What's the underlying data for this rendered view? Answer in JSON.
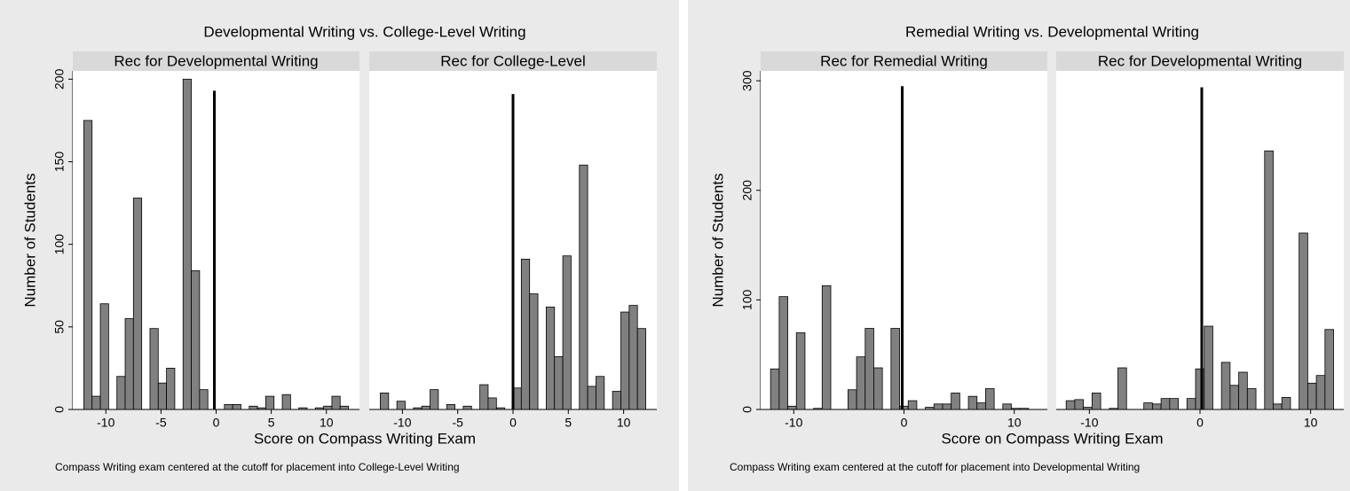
{
  "chart_data": [
    {
      "type": "histogram",
      "title": "Developmental Writing vs. College-Level Writing",
      "xlabel": "Score on Compass Writing Exam",
      "ylabel": "Number of Students",
      "note": "Compass Writing exam centered at the cutoff for placement into College-Level Writing",
      "xlim": [
        -13,
        13
      ],
      "ylim": [
        0,
        205
      ],
      "xticks": [
        -10,
        -5,
        0,
        5,
        10
      ],
      "yticks": [
        0,
        50,
        100,
        150,
        200
      ],
      "bins": [
        -12,
        -11.25,
        -10.5,
        -9.75,
        -9,
        -8.25,
        -7.5,
        -6.75,
        -6,
        -5.25,
        -4.5,
        -3.75,
        -3,
        -2.25,
        -1.5,
        -0.75,
        0,
        0.75,
        1.5,
        2.25,
        3,
        3.75,
        4.5,
        5.25,
        6,
        6.75,
        7.5,
        8.25,
        9,
        9.75,
        10.5,
        11.25,
        12
      ],
      "series": [
        {
          "name": "Rec for Developmental Writing",
          "color": "#808080",
          "values": [
            175,
            8,
            64,
            0,
            20,
            55,
            128,
            0,
            49,
            16,
            25,
            0,
            200,
            84,
            12,
            0,
            0,
            3,
            3,
            0,
            2,
            1,
            8,
            0,
            9,
            0,
            1,
            0,
            1,
            2,
            8,
            2
          ],
          "cutoff": {
            "x": -0.16,
            "y": 193
          }
        },
        {
          "name": "Rec for College-Level",
          "color": "#808080",
          "values": [
            10,
            0,
            5,
            0,
            1,
            2,
            12,
            0,
            3,
            0,
            2,
            0,
            15,
            7,
            1,
            0,
            13,
            91,
            70,
            0,
            62,
            32,
            93,
            0,
            148,
            14,
            20,
            0,
            11,
            59,
            63,
            49
          ],
          "cutoff": {
            "x": 0,
            "y": 191
          }
        }
      ]
    },
    {
      "type": "histogram",
      "title": "Remedial Writing vs. Developmental Writing",
      "xlabel": "Score on Compass Writing Exam",
      "ylabel": "Number of Students",
      "note": "Compass Writing exam centered at the cutoff for placement into Developmental Writing",
      "xlim": [
        -13,
        13
      ],
      "ylim": [
        0,
        309
      ],
      "xticks": [
        -10,
        0,
        10
      ],
      "yticks": [
        0,
        100,
        200,
        300
      ],
      "bins": [
        -12.1,
        -11.32,
        -10.54,
        -9.76,
        -8.98,
        -8.2,
        -7.42,
        -6.64,
        -5.86,
        -5.08,
        -4.3,
        -3.52,
        -2.74,
        -1.96,
        -1.18,
        -0.4,
        0.38,
        1.16,
        1.94,
        2.72,
        3.5,
        4.28,
        5.06,
        5.84,
        6.62,
        7.4,
        8.18,
        8.96,
        9.74,
        10.52,
        11.3,
        12.08
      ],
      "series": [
        {
          "name": "Rec for Remedial Writing",
          "color": "#808080",
          "values": [
            37,
            103,
            3,
            70,
            0,
            1,
            113,
            0,
            0,
            18,
            48,
            74,
            38,
            0,
            74,
            3,
            8,
            0,
            2,
            5,
            5,
            15,
            0,
            12,
            6,
            19,
            0,
            5,
            1,
            1,
            0
          ],
          "cutoff": {
            "x": -0.16,
            "y": 295
          }
        },
        {
          "name": "Rec for Developmental Writing",
          "color": "#808080",
          "values": [
            8,
            9,
            2,
            15,
            0,
            1,
            38,
            0,
            0,
            6,
            5,
            10,
            10,
            0,
            10,
            37,
            76,
            0,
            43,
            22,
            34,
            19,
            0,
            236,
            5,
            11,
            0,
            161,
            24,
            31,
            73
          ],
          "cutoff": {
            "x": 0.16,
            "y": 294
          }
        }
      ]
    }
  ]
}
